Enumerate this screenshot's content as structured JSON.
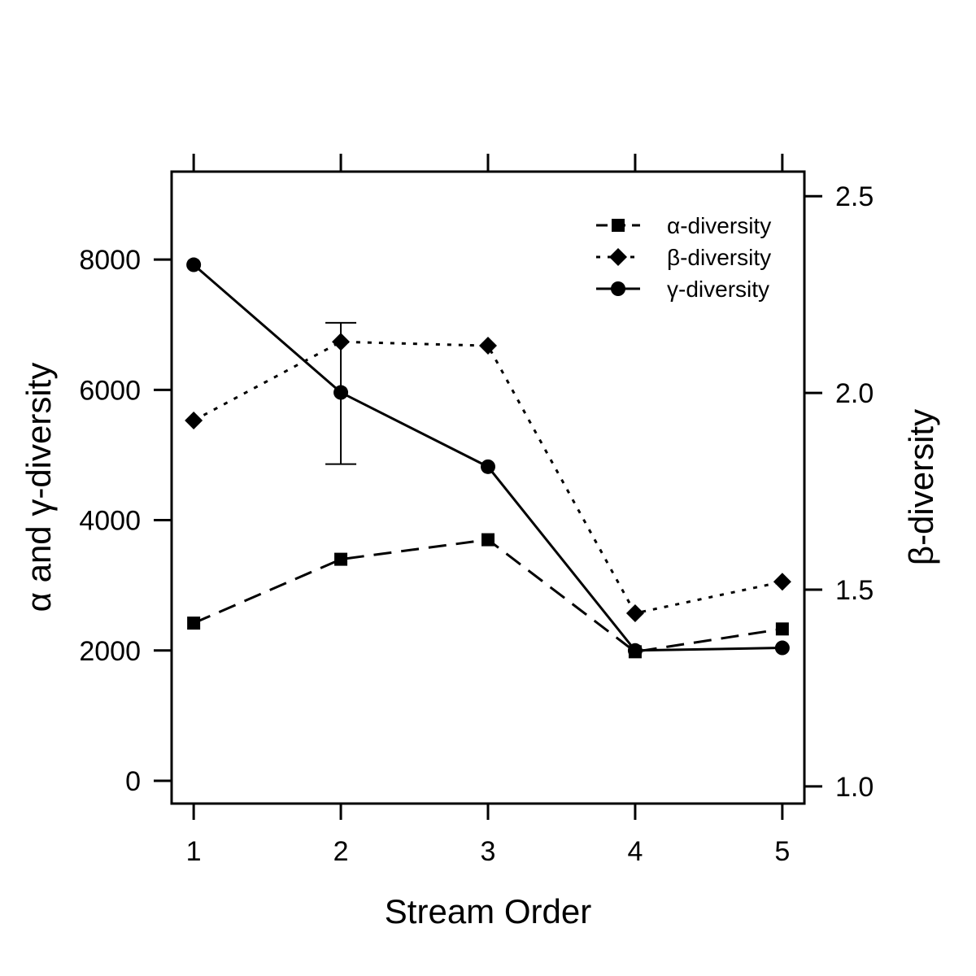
{
  "chart_data": {
    "type": "line",
    "title": "",
    "xlabel": "Stream Order",
    "ylabel_left": "α and γ-diversity",
    "ylabel_right": "β-diversity",
    "x": [
      1,
      2,
      3,
      4,
      5
    ],
    "xlim": [
      0.85,
      5.15
    ],
    "ylim_left": [
      -350,
      9350
    ],
    "ylim_right": [
      0.9563,
      2.5625
    ],
    "xticks": [
      1,
      2,
      3,
      4,
      5
    ],
    "yticks_left": [
      0,
      2000,
      4000,
      6000,
      8000
    ],
    "yticks_right": [
      1.0,
      1.5,
      2.0,
      2.5
    ],
    "grid": false,
    "legend_position": "top-right",
    "series": [
      {
        "name": "α-diversity",
        "axis": "left",
        "line_style": "dashed",
        "marker": "square",
        "values": [
          2420,
          3400,
          3700,
          1980,
          2330
        ]
      },
      {
        "name": "β-diversity",
        "axis": "right",
        "line_style": "dotted",
        "marker": "diamond",
        "values": [
          1.93,
          2.13,
          2.12,
          1.44,
          1.52
        ]
      },
      {
        "name": "γ-diversity",
        "axis": "left",
        "line_style": "solid",
        "marker": "circle",
        "values": [
          7920,
          5960,
          4820,
          2000,
          2040
        ]
      }
    ],
    "error_bars": [
      {
        "series": "γ-diversity",
        "x": 2,
        "lower": 4860,
        "upper": 7030
      }
    ],
    "colors": {
      "ink": "#000000",
      "background": "#ffffff"
    }
  }
}
